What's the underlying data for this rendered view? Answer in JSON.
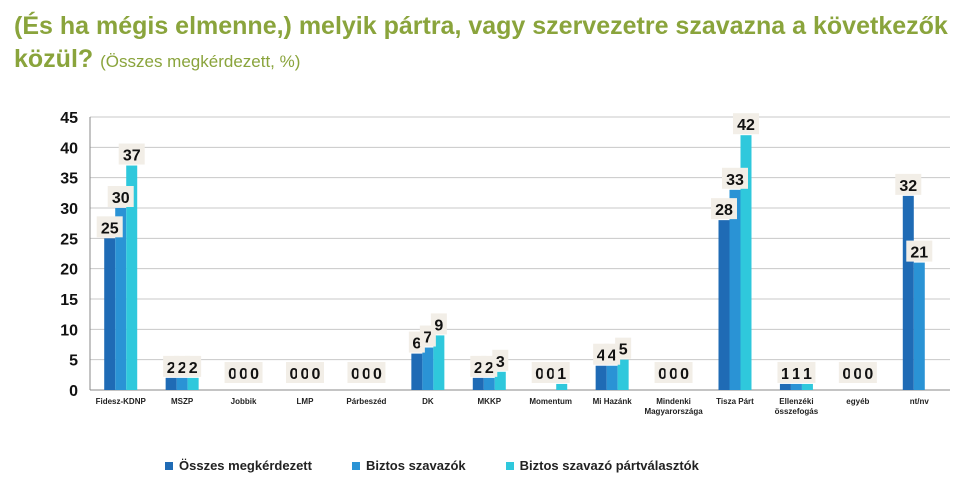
{
  "title": {
    "main": "(És ha mégis elmenne,) melyik pártra, vagy szervezetre szavazna a következők közül?",
    "sub": "(Összes megkérdezett, %)"
  },
  "chart_data": {
    "type": "bar",
    "categories": [
      "Fidesz-KDNP",
      "MSZP",
      "Jobbik",
      "LMP",
      "Párbeszéd",
      "DK",
      "MKKP",
      "Momentum",
      "Mi Hazánk",
      "Mindenki Magyarországa",
      "Tisza Párt",
      "Ellenzéki összefogás",
      "egyéb",
      "nt/nv"
    ],
    "series": [
      {
        "name": "Összes megkérdezett",
        "color": "#1f6bb5",
        "values": [
          25,
          2,
          0,
          0,
          0,
          6,
          2,
          0,
          4,
          0,
          28,
          1,
          0,
          32
        ]
      },
      {
        "name": "Biztos szavazók",
        "color": "#2a93d5",
        "values": [
          30,
          2,
          0,
          0,
          0,
          7,
          2,
          0,
          4,
          0,
          33,
          1,
          0,
          21
        ]
      },
      {
        "name": "Biztos szavazó pártválasztók",
        "color": "#2fc8dc",
        "values": [
          37,
          2,
          0,
          0,
          0,
          9,
          3,
          1,
          5,
          0,
          42,
          1,
          0,
          null
        ]
      }
    ],
    "ylim": [
      0,
      45
    ],
    "yticks": [
      0,
      5,
      10,
      15,
      20,
      25,
      30,
      35,
      40,
      45
    ],
    "grid": true,
    "legend_position": "bottom"
  }
}
